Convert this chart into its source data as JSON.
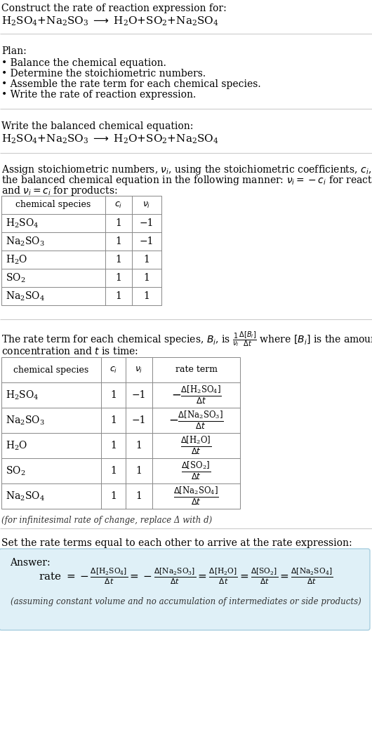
{
  "title_line1": "Construct the rate of reaction expression for:",
  "plan_header": "Plan:",
  "plan_items": [
    "• Balance the chemical equation.",
    "• Determine the stoichiometric numbers.",
    "• Assemble the rate term for each chemical species.",
    "• Write the rate of reaction expression."
  ],
  "balanced_header": "Write the balanced chemical equation:",
  "assign_text1": "Assign stoichiometric numbers, ν_i, using the stoichiometric coefficients, c_i, from",
  "assign_text2": "the balanced chemical equation in the following manner: ν_i = −c_i for reactants",
  "assign_text3": "and ν_i = c_i for products:",
  "table1_headers": [
    "chemical species",
    "c_i",
    "ν_i"
  ],
  "table1_rows": [
    [
      "H_2SO_4",
      "1",
      "−1"
    ],
    [
      "Na_2SO_3",
      "1",
      "−1"
    ],
    [
      "H_2O",
      "1",
      "1"
    ],
    [
      "SO_2",
      "1",
      "1"
    ],
    [
      "Na_2SO_4",
      "1",
      "1"
    ]
  ],
  "table2_headers": [
    "chemical species",
    "c_i",
    "ν_i",
    "rate term"
  ],
  "table2_rows": [
    [
      "H_2SO_4",
      "1",
      "−1",
      "neg_H2SO4"
    ],
    [
      "Na_2SO_3",
      "1",
      "−1",
      "neg_Na2SO3"
    ],
    [
      "H_2O",
      "1",
      "1",
      "pos_H2O"
    ],
    [
      "SO_2",
      "1",
      "1",
      "pos_SO2"
    ],
    [
      "Na_2SO_4",
      "1",
      "1",
      "pos_Na2SO4"
    ]
  ],
  "infinitesimal_note": "(for infinitesimal rate of change, replace Δ with d)",
  "set_rate_text": "Set the rate terms equal to each other to arrive at the rate expression:",
  "answer_label": "Answer:",
  "answer_box_color": "#dff0f7",
  "answer_box_border": "#a8cfe0",
  "assuming_note": "(assuming constant volume and no accumulation of intermediates or side products)",
  "bg_color": "#ffffff",
  "text_color": "#000000",
  "table_border_color": "#888888",
  "sep_color": "#cccccc",
  "font_size": 10,
  "small_font": 9,
  "eq_font": 11
}
